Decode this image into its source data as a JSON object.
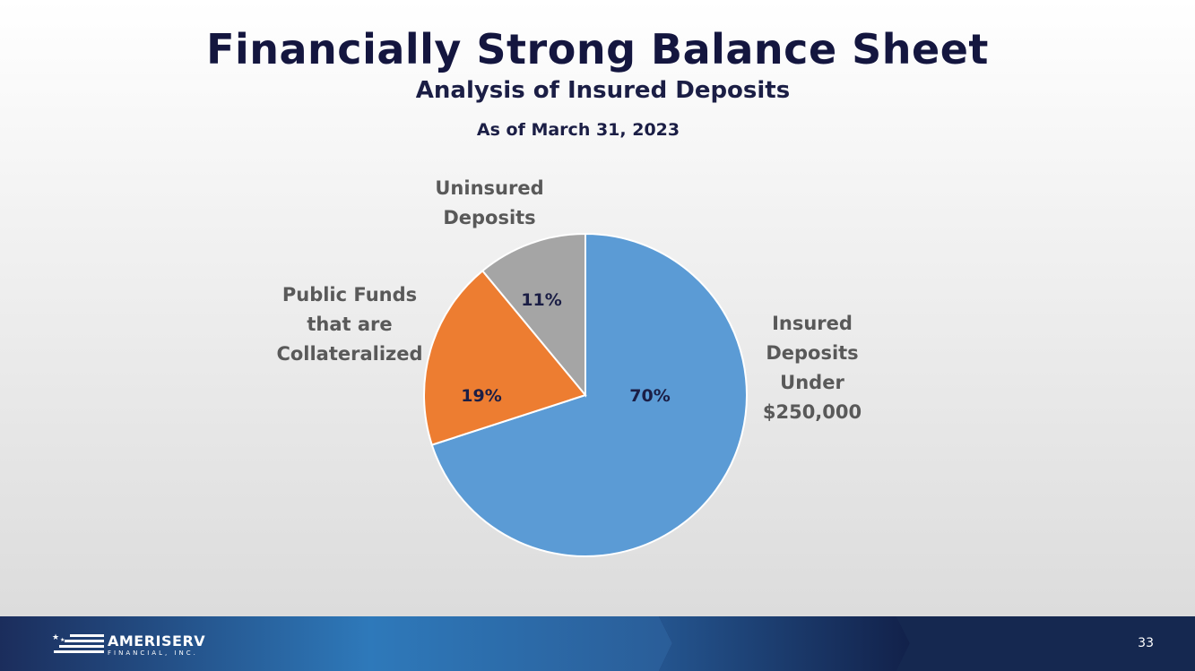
{
  "slide": {
    "title": "Financially Strong Balance Sheet",
    "subtitle": "Analysis of Insured Deposits",
    "as_of": "As of March 31, 2023",
    "page_number": "33"
  },
  "logo": {
    "name": "AMERISERV",
    "sub": "FINANCIAL, INC."
  },
  "colors": {
    "title": "#14163f",
    "footer_dark": "#1a2a55",
    "footer_mid": "#2f78b8"
  },
  "chart_data": {
    "type": "pie",
    "title": "",
    "start_angle_deg": 0,
    "direction": "clockwise",
    "slices": [
      {
        "label_lines": [
          "Insured",
          "Deposits",
          "Under",
          "$250,000"
        ],
        "value": 70,
        "display": "70%",
        "color": "#5b9bd5"
      },
      {
        "label_lines": [
          "Public Funds",
          "that are",
          "Collateralized"
        ],
        "value": 19,
        "display": "19%",
        "color": "#ed7d31"
      },
      {
        "label_lines": [
          "Uninsured",
          "Deposits"
        ],
        "value": 11,
        "display": "11%",
        "color": "#a5a5a5"
      }
    ]
  }
}
